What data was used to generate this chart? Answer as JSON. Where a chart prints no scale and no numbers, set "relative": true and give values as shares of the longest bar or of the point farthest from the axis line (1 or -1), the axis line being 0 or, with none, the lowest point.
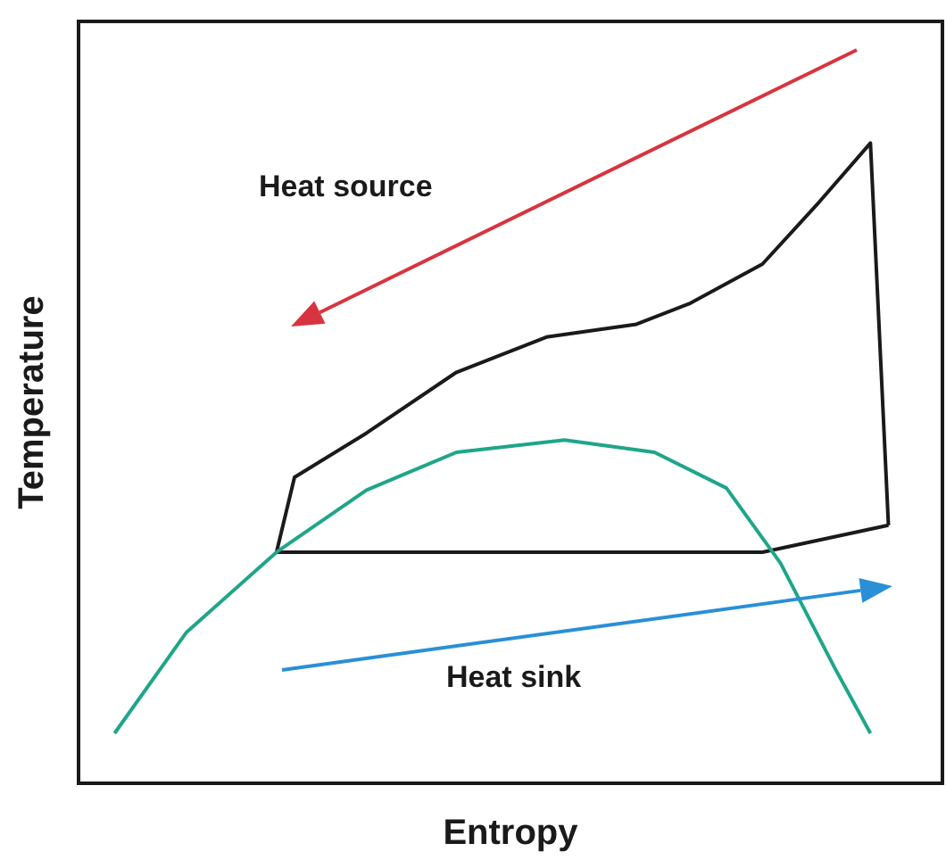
{
  "chart_data": {
    "type": "line",
    "xlabel": "Entropy",
    "ylabel": "Temperature",
    "relative": true,
    "tick_labels": false,
    "grid": false,
    "marker": "none",
    "line_style": "solid",
    "categories": [
      null,
      null,
      null,
      null,
      null,
      null,
      null,
      null,
      null,
      null,
      null,
      null,
      null,
      null,
      null,
      null,
      null,
      null,
      null,
      null,
      null,
      null,
      null,
      null,
      null,
      null,
      null,
      null,
      null,
      null,
      null,
      null,
      null,
      null,
      null,
      null,
      null,
      null,
      null,
      null,
      null,
      null,
      null,
      null,
      null,
      null,
      null,
      null,
      null
    ],
    "series": [
      {
        "color": "#1a1a1a",
        "values": [
          null,
          null,
          null,
          null,
          null,
          null,
          null,
          null,
          null,
          null,
          null,
          0.361,
          0.478,
          null,
          null,
          null,
          0.547,
          null,
          null,
          null,
          null,
          0.642,
          null,
          null,
          null,
          null,
          0.697,
          null,
          null,
          null,
          null,
          0.717,
          null,
          null,
          0.75,
          null,
          null,
          null,
          0.811,
          null,
          null,
          0.903,
          null,
          null,
          1,
          0.403,
          null,
          null,
          null
        ]
      },
      {
        "color": "#1a1a1a",
        "values": [
          null,
          null,
          null,
          null,
          null,
          null,
          null,
          null,
          null,
          null,
          null,
          0.361,
          null,
          null,
          null,
          null,
          null,
          null,
          null,
          null,
          null,
          null,
          null,
          null,
          null,
          null,
          null,
          null,
          null,
          null,
          null,
          null,
          null,
          null,
          null,
          null,
          null,
          null,
          0.361,
          null,
          null,
          null,
          null,
          null,
          null,
          0.403,
          null,
          null,
          null
        ]
      },
      {
        "color": "#1fa58a",
        "values": [
          null,
          null,
          0.078,
          null,
          null,
          null,
          0.236,
          null,
          null,
          null,
          null,
          0.361,
          null,
          null,
          null,
          null,
          0.458,
          null,
          null,
          null,
          null,
          0.517,
          null,
          null,
          null,
          null,
          null,
          0.536,
          null,
          null,
          null,
          null,
          0.517,
          null,
          null,
          null,
          0.461,
          null,
          null,
          0.344,
          null,
          null,
          0.181,
          null,
          0.078,
          null,
          null,
          null,
          null
        ]
      }
    ],
    "annotations": [
      "Heat source",
      "Heat sink"
    ]
  }
}
